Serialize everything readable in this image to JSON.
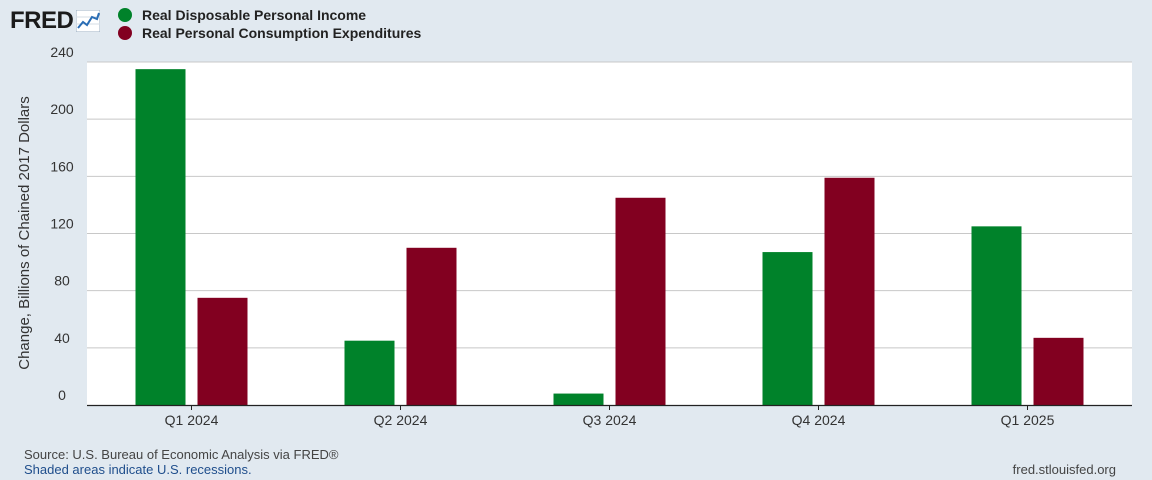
{
  "brand": {
    "name": "FRED",
    "icon": "line-graph-icon"
  },
  "colors": {
    "income": "#00822a",
    "consumption": "#820020",
    "grid": "#c8c8c8",
    "plot_bg": "#ffffff",
    "page_bg": "#e1e9f0"
  },
  "chart_data": {
    "type": "bar",
    "categories": [
      "Q1 2024",
      "Q2 2024",
      "Q3 2024",
      "Q4 2024",
      "Q1 2025"
    ],
    "series": [
      {
        "name": "Real Disposable Personal Income",
        "color": "#00822a",
        "values": [
          235,
          45,
          8,
          107,
          125
        ]
      },
      {
        "name": "Real Personal Consumption Expenditures",
        "color": "#820020",
        "values": [
          75,
          110,
          145,
          159,
          47
        ]
      }
    ],
    "ylabel": "Change, Billions of Chained 2017 Dollars",
    "ylim": [
      0,
      240
    ],
    "yticks": [
      "0",
      "40",
      "80",
      "120",
      "160",
      "200",
      "240"
    ],
    "grid": true,
    "legend_position": "top-left"
  },
  "footer": {
    "source": "Source: U.S. Bureau of Economic Analysis via FRED®",
    "recessions": "Shaded areas indicate U.S. recessions.",
    "site": "fred.stlouisfed.org"
  }
}
